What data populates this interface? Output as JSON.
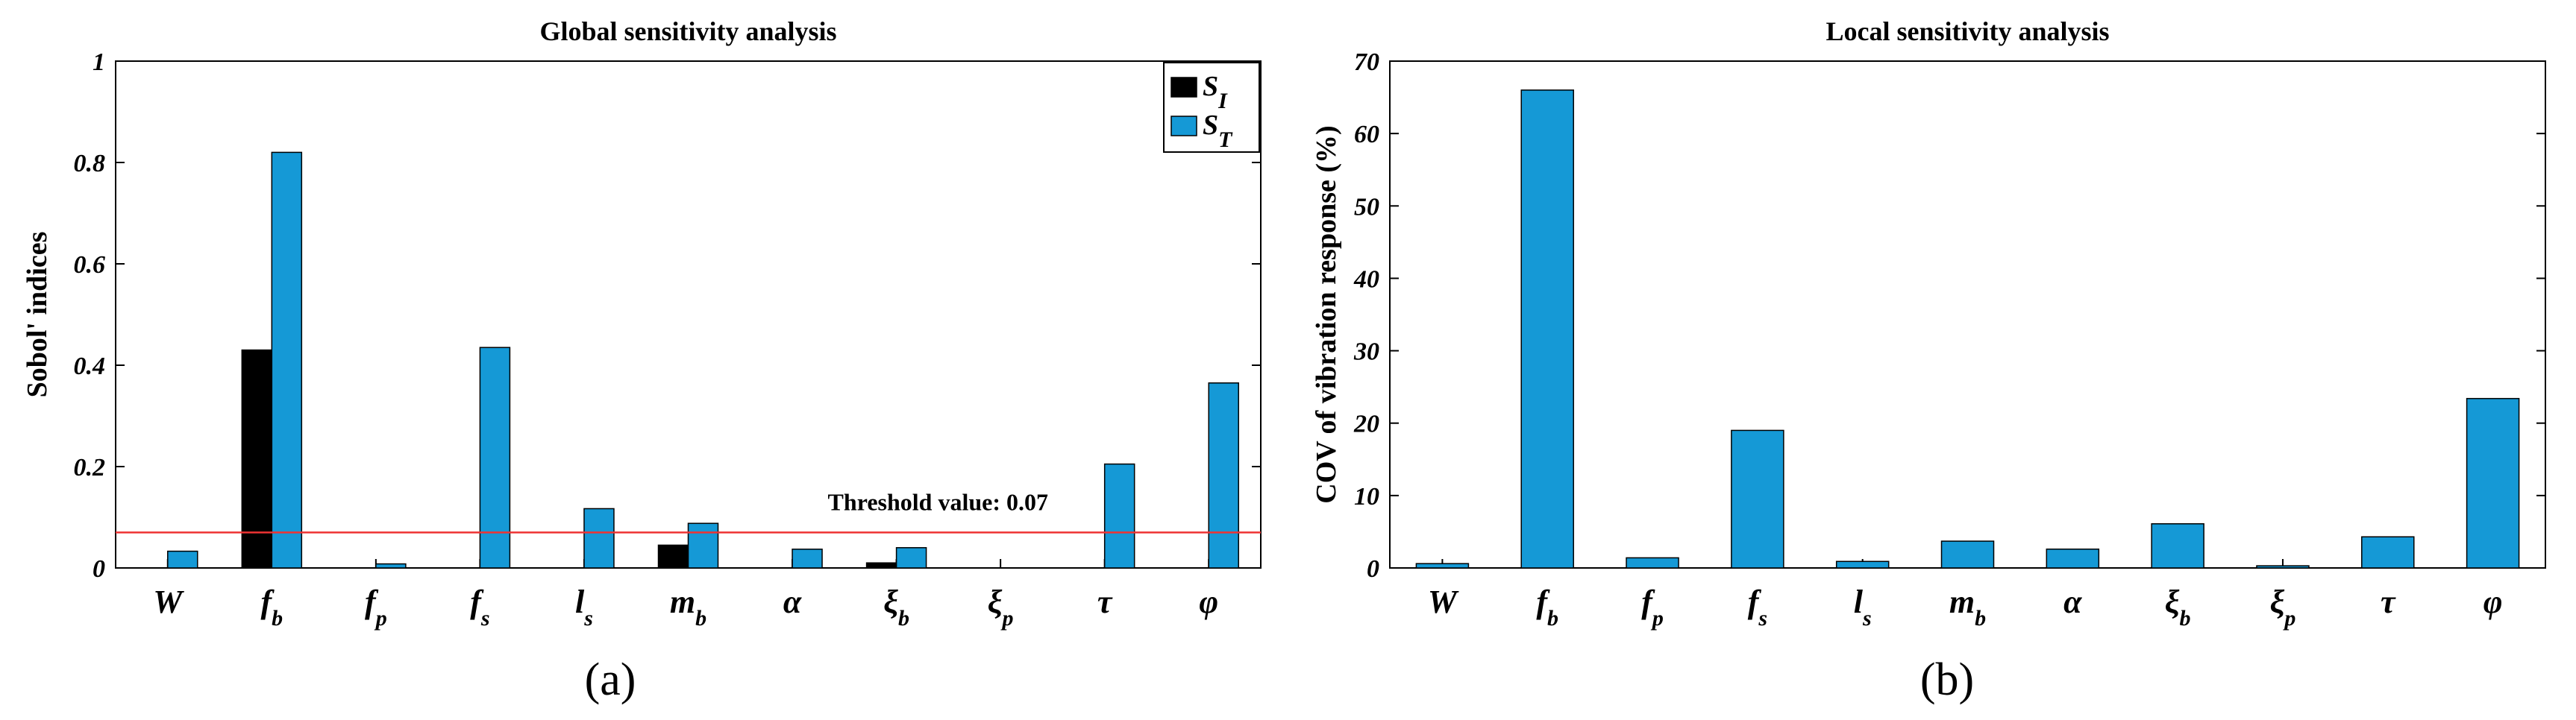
{
  "colors": {
    "black": "#000000",
    "blue": "#1599d6",
    "threshold": "#ee3333",
    "axis": "#000000"
  },
  "chart_data": [
    {
      "type": "bar",
      "title": "Global sensitivity analysis",
      "ylabel": "Sobol' indices",
      "xlabel": "",
      "ylim": [
        0,
        1
      ],
      "yticks": [
        "0",
        "0.2",
        "0.4",
        "0.6",
        "0.8",
        "1"
      ],
      "ytick_values": [
        0,
        0.2,
        0.4,
        0.6,
        0.8,
        1
      ],
      "categories": [
        {
          "base": "W",
          "sub": ""
        },
        {
          "base": "f",
          "sub": "b"
        },
        {
          "base": "f",
          "sub": "p"
        },
        {
          "base": "f",
          "sub": "s"
        },
        {
          "base": "l",
          "sub": "s"
        },
        {
          "base": "m",
          "sub": "b"
        },
        {
          "base": "α",
          "sub": ""
        },
        {
          "base": "ξ",
          "sub": "b"
        },
        {
          "base": "ξ",
          "sub": "p"
        },
        {
          "base": "τ",
          "sub": ""
        },
        {
          "base": "φ",
          "sub": ""
        }
      ],
      "series": [
        {
          "name": "S_I",
          "legend_base": "S",
          "legend_sub": "I",
          "color": "#000000",
          "values": [
            0,
            0.43,
            0,
            0,
            0,
            0.045,
            0,
            0.01,
            0,
            0,
            0
          ]
        },
        {
          "name": "S_T",
          "legend_base": "S",
          "legend_sub": "T",
          "color": "#1599d6",
          "values": [
            0.033,
            0.82,
            0.008,
            0.435,
            0.117,
            0.088,
            0.037,
            0.04,
            0,
            0.205,
            0.365
          ]
        }
      ],
      "threshold": {
        "value": 0.07,
        "label": "Threshold value: 0.07"
      },
      "legend": "top-right",
      "panel_label": "(a)"
    },
    {
      "type": "bar",
      "title": "Local sensitivity analysis",
      "ylabel": "COV of vibration response (%)",
      "xlabel": "",
      "ylim": [
        0,
        70
      ],
      "yticks": [
        "0",
        "10",
        "20",
        "30",
        "40",
        "50",
        "60",
        "70"
      ],
      "ytick_values": [
        0,
        10,
        20,
        30,
        40,
        50,
        60,
        70
      ],
      "categories": [
        {
          "base": "W",
          "sub": ""
        },
        {
          "base": "f",
          "sub": "b"
        },
        {
          "base": "f",
          "sub": "p"
        },
        {
          "base": "f",
          "sub": "s"
        },
        {
          "base": "l",
          "sub": "s"
        },
        {
          "base": "m",
          "sub": "b"
        },
        {
          "base": "α",
          "sub": ""
        },
        {
          "base": "ξ",
          "sub": "b"
        },
        {
          "base": "ξ",
          "sub": "p"
        },
        {
          "base": "τ",
          "sub": ""
        },
        {
          "base": "φ",
          "sub": ""
        }
      ],
      "series": [
        {
          "name": "",
          "color": "#1599d6",
          "values": [
            0.6,
            66,
            1.4,
            19,
            0.9,
            3.7,
            2.6,
            6.1,
            0.3,
            4.3,
            23.4
          ]
        }
      ],
      "panel_label": "(b)"
    }
  ]
}
